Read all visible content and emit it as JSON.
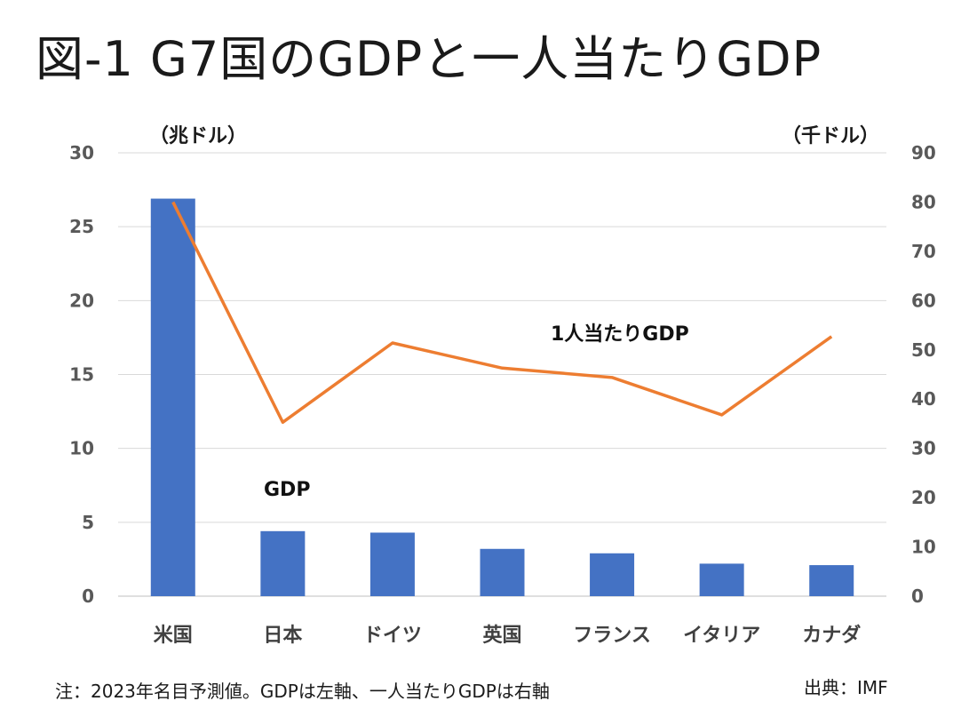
{
  "chart_data": {
    "type": "bar+line",
    "title": "図-1 G7国のGDPと一人当たりGDP",
    "categories": [
      "米国",
      "日本",
      "ドイツ",
      "英国",
      "フランス",
      "イタリア",
      "カナダ"
    ],
    "left_axis": {
      "unit_label": "（兆ドル）",
      "ylim": [
        0,
        30
      ],
      "ticks": [
        0,
        5,
        10,
        15,
        20,
        25,
        30
      ]
    },
    "right_axis": {
      "unit_label": "（千ドル）",
      "ylim": [
        0,
        90
      ],
      "ticks": [
        0,
        10,
        20,
        30,
        40,
        50,
        60,
        70,
        80,
        90
      ]
    },
    "series": [
      {
        "name": "GDP",
        "type": "bar",
        "axis": "left",
        "color": "#4472C4",
        "values": [
          26.9,
          4.4,
          4.3,
          3.2,
          2.9,
          2.2,
          2.1
        ]
      },
      {
        "name": "1人当たりGDP",
        "type": "line",
        "axis": "right",
        "color": "#ED7D31",
        "values": [
          80.0,
          35.3,
          51.4,
          46.3,
          44.4,
          36.8,
          52.7
        ]
      }
    ],
    "grid": true,
    "legend": "none"
  },
  "footer": {
    "note": "注：2023年名目予測値。GDPは左軸、一人当たりGDPは右軸",
    "source": "出典：IMF"
  }
}
